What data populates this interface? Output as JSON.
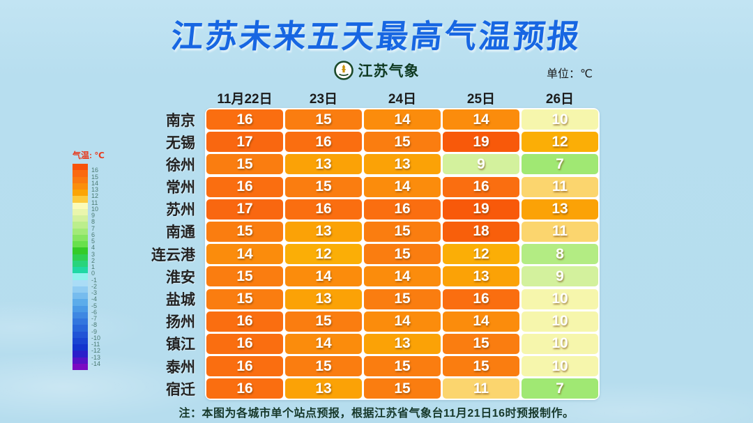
{
  "page": {
    "title": "江苏未来五天最高气温预报",
    "unit_label": "单位：℃",
    "note": "注：本图为各城市单个站点预报，根据江苏省气象台11月21日16时预报制作。"
  },
  "logo": {
    "name": "江苏气象"
  },
  "legend": {
    "title": "气温: ℃",
    "ticks": [
      16,
      15,
      14,
      13,
      12,
      11,
      10,
      9,
      8,
      7,
      6,
      5,
      4,
      3,
      2,
      1,
      0,
      -1,
      -2,
      -3,
      -4,
      -5,
      -6,
      -7,
      -8,
      -9,
      -10,
      -11,
      -12,
      -13,
      -14
    ],
    "segment_colors": [
      "#F8530A",
      "#FA6A10",
      "#FA7A10",
      "#FB8E0C",
      "#FBA406",
      "#FCCB3E",
      "#FBFBB8",
      "#EAF6AC",
      "#D4F19E",
      "#BCEE8C",
      "#A2EA78",
      "#86E562",
      "#68E04C",
      "#34CB28",
      "#2FD052",
      "#28D47C",
      "#20D8A4",
      "#90F2EC",
      "#AADCF6",
      "#90CCF2",
      "#76BCEE",
      "#5CACEA",
      "#4A9AE6",
      "#3E88E2",
      "#3276DE",
      "#2866DA",
      "#2054D6",
      "#1844D2",
      "#1234CE",
      "#2A1ECA",
      "#5512C6",
      "#7A0AC2"
    ]
  },
  "color_scale": {
    "7": "#A0E873",
    "8": "#B3EC83",
    "9": "#D3F19D",
    "10": "#F6F6AC",
    "11": "#FBD56E",
    "12": "#FBAE06",
    "13": "#FBA206",
    "14": "#FB8C0C",
    "15": "#FA7D10",
    "16": "#FA6E10",
    "17": "#F96710",
    "18": "#F85F0B",
    "19": "#F8590A"
  },
  "chart_data": {
    "type": "heatmap",
    "title": "江苏未来五天最高气温预报",
    "unit": "℃",
    "categories": [
      "11月22日",
      "23日",
      "24日",
      "25日",
      "26日"
    ],
    "series": [
      {
        "name": "南京",
        "values": [
          16,
          15,
          14,
          14,
          10
        ]
      },
      {
        "name": "无锡",
        "values": [
          17,
          16,
          15,
          19,
          12
        ]
      },
      {
        "name": "徐州",
        "values": [
          15,
          13,
          13,
          9,
          7
        ]
      },
      {
        "name": "常州",
        "values": [
          16,
          15,
          14,
          16,
          11
        ]
      },
      {
        "name": "苏州",
        "values": [
          17,
          16,
          16,
          19,
          13
        ]
      },
      {
        "name": "南通",
        "values": [
          15,
          13,
          15,
          18,
          11
        ]
      },
      {
        "name": "连云港",
        "values": [
          14,
          12,
          15,
          12,
          8
        ]
      },
      {
        "name": "淮安",
        "values": [
          15,
          14,
          14,
          13,
          9
        ]
      },
      {
        "name": "盐城",
        "values": [
          15,
          13,
          15,
          16,
          10
        ]
      },
      {
        "name": "扬州",
        "values": [
          16,
          15,
          14,
          14,
          10
        ]
      },
      {
        "name": "镇江",
        "values": [
          16,
          14,
          13,
          15,
          10
        ]
      },
      {
        "name": "泰州",
        "values": [
          16,
          15,
          15,
          15,
          10
        ]
      },
      {
        "name": "宿迁",
        "values": [
          16,
          13,
          15,
          11,
          7
        ]
      }
    ],
    "legend": {
      "title": "气温: ℃",
      "min": -14,
      "max": 16,
      "position": "left"
    }
  }
}
